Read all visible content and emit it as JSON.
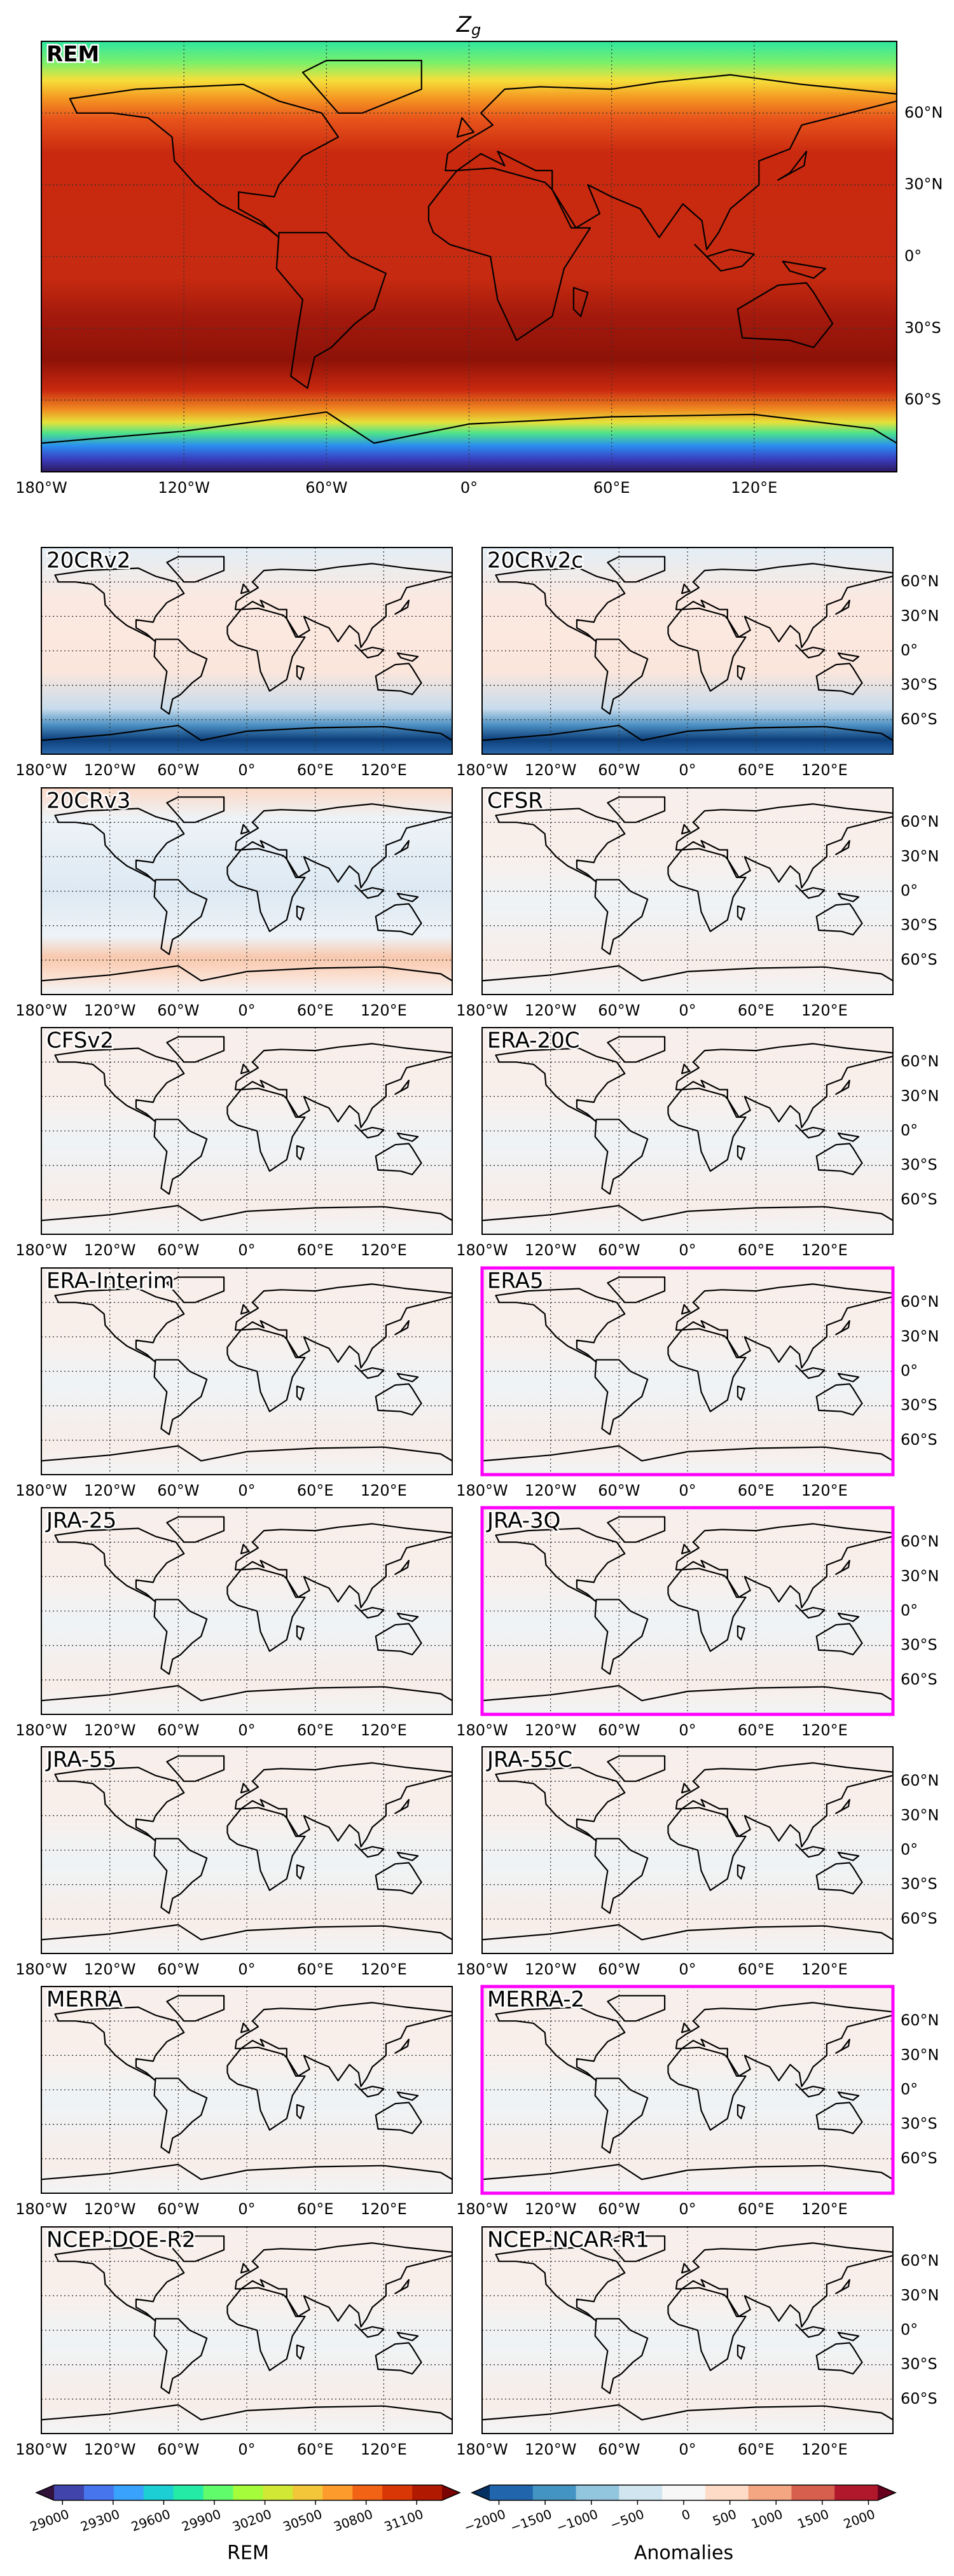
{
  "title": {
    "symbol": "Z",
    "subscript": "g"
  },
  "main_panel": {
    "label": "REM"
  },
  "longitude_labels": [
    "180°W",
    "120°W",
    "60°W",
    "0°",
    "60°E",
    "120°E"
  ],
  "latitude_labels": [
    "60°N",
    "30°N",
    "0°",
    "30°S",
    "60°S"
  ],
  "panels": [
    {
      "label": "20CRv2",
      "highlight": false
    },
    {
      "label": "20CRv2c",
      "highlight": false
    },
    {
      "label": "20CRv3",
      "highlight": false
    },
    {
      "label": "CFSR",
      "highlight": false
    },
    {
      "label": "CFSv2",
      "highlight": false
    },
    {
      "label": "ERA-20C",
      "highlight": false
    },
    {
      "label": "ERA-Interim",
      "highlight": false
    },
    {
      "label": "ERA5",
      "highlight": true
    },
    {
      "label": "JRA-25",
      "highlight": false
    },
    {
      "label": "JRA-3Q",
      "highlight": true
    },
    {
      "label": "JRA-55",
      "highlight": false
    },
    {
      "label": "JRA-55C",
      "highlight": false
    },
    {
      "label": "MERRA",
      "highlight": false
    },
    {
      "label": "MERRA-2",
      "highlight": true
    },
    {
      "label": "NCEP-DOE-R2",
      "highlight": false
    },
    {
      "label": "NCEP-NCAR-R1",
      "highlight": false
    }
  ],
  "colorbars": [
    {
      "label": "REM",
      "lim": [
        28950,
        31250
      ],
      "ticks": [
        29000,
        29300,
        29600,
        29900,
        30200,
        30500,
        30800,
        31100
      ],
      "colors": [
        "#30123b",
        "#4145ab",
        "#4675ed",
        "#39a2fc",
        "#1bcfd4",
        "#24eca6",
        "#61fc6c",
        "#a4fc3b",
        "#d1e834",
        "#f3c63a",
        "#fe9b2d",
        "#f36315",
        "#d93806",
        "#b11901",
        "#7a0403"
      ]
    },
    {
      "label": "Anomalies",
      "lim": [
        -2100,
        2100
      ],
      "ticks": [
        {
          "value": -2000,
          "label": "−2000"
        },
        {
          "value": -1500,
          "label": "−1500"
        },
        {
          "value": -1000,
          "label": "−1000"
        },
        {
          "value": -500,
          "label": "−500"
        },
        0,
        500,
        1000,
        1500,
        2000
      ],
      "colors": [
        "#053061",
        "#2166ac",
        "#4393c3",
        "#92c5de",
        "#d1e5f0",
        "#f7f7f7",
        "#fddbc7",
        "#f4a582",
        "#d6604d",
        "#b2182b",
        "#67001f"
      ]
    }
  ]
}
